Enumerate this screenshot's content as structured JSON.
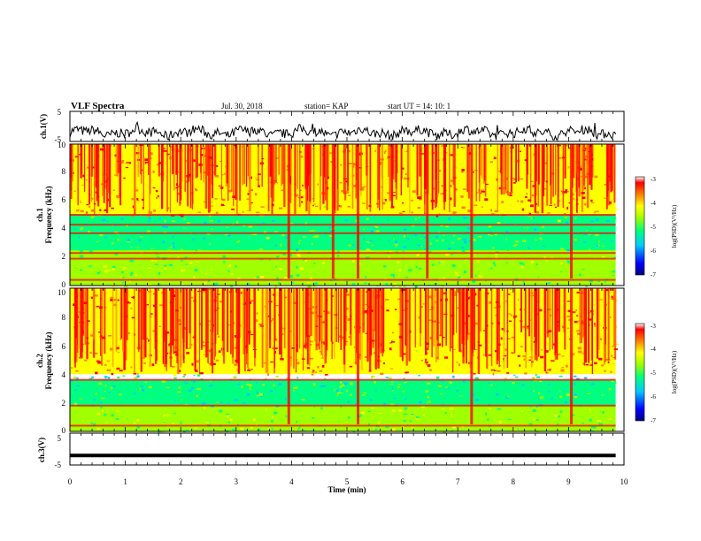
{
  "header": {
    "title": "VLF Spectra",
    "date": "Jul. 30, 2018",
    "station": "station= KAP",
    "start": "start  UT =   14: 10: 1"
  },
  "chart_data": [
    {
      "type": "line",
      "panel": "ch1-waveform",
      "ylabel": "ch.1(V)",
      "ylim": [
        -5,
        5
      ],
      "yticks": [
        "5",
        "-5"
      ],
      "xlim": [
        0,
        10
      ],
      "note_series": "noisy trace oscillating around about -2 V"
    },
    {
      "type": "heatmap",
      "panel": "ch1-spectrogram",
      "ylabel_top": "ch.1",
      "ylabel_bottom": "Frequency (kHz)",
      "ylim": [
        0,
        10
      ],
      "yticks": [
        "0",
        "2",
        "4",
        "6",
        "8",
        "10"
      ],
      "xlim": [
        0,
        10
      ],
      "colorbar": {
        "label": "log(PSD)(V²/Hz)",
        "range": [
          -7,
          -3
        ],
        "ticks": [
          "-3",
          "-4",
          "-5",
          "-6",
          "-7"
        ],
        "colors": [
          "#000080",
          "#0000ff",
          "#00c8ff",
          "#00ff80",
          "#a0ff00",
          "#ffff00",
          "#ff8000",
          "#ff0000",
          "#ffffff"
        ]
      },
      "features": {
        "band_high_kHz": [
          5.0,
          10.0
        ],
        "band_mid_kHz": [
          2.5,
          5.0
        ],
        "band_low_kHz": [
          0.0,
          2.5
        ],
        "strong_lines_kHz": [
          5.0,
          4.3,
          3.7,
          2.3,
          1.9,
          0.4
        ],
        "sferic_columns_min": [
          3.95,
          4.75,
          5.2,
          6.45,
          7.25,
          9.05
        ]
      }
    },
    {
      "type": "heatmap",
      "panel": "ch2-spectrogram",
      "ylabel_top": "ch.2",
      "ylabel_bottom": "Frequency (kHz)",
      "ylim": [
        0,
        10
      ],
      "yticks": [
        "0",
        "2",
        "4",
        "6",
        "8",
        "10"
      ],
      "xlim": [
        0,
        10
      ],
      "colorbar": {
        "label": "log(PSD)(V²/Hz)",
        "range": [
          -7,
          -3
        ],
        "ticks": [
          "-3",
          "-4",
          "-5",
          "-6",
          "-7"
        ],
        "colors": [
          "#000080",
          "#0000ff",
          "#00c8ff",
          "#00ff80",
          "#a0ff00",
          "#ffff00",
          "#ff8000",
          "#ff0000",
          "#ffffff"
        ]
      },
      "features": {
        "band_high_kHz": [
          4.0,
          10.0
        ],
        "band_mid_kHz": [
          1.8,
          3.6
        ],
        "band_low_kHz": [
          0.0,
          1.8
        ],
        "strong_lines_kHz": [
          3.6,
          1.8,
          0.4
        ],
        "sferic_columns_min": [
          3.95,
          5.2,
          7.25,
          9.05
        ]
      }
    },
    {
      "type": "line",
      "panel": "ch3-waveform",
      "ylabel": "ch.3(V)",
      "ylim": [
        -5,
        5
      ],
      "yticks": [
        "5",
        "-5"
      ],
      "xlim": [
        0,
        10
      ],
      "xlabel": "Time (min)",
      "xticks": [
        "0",
        "1",
        "2",
        "3",
        "4",
        "5",
        "6",
        "7",
        "8",
        "9",
        "10"
      ],
      "series": [
        {
          "values_x": [
            0,
            9.85
          ],
          "values_y": [
            -2,
            -2
          ]
        }
      ]
    }
  ]
}
